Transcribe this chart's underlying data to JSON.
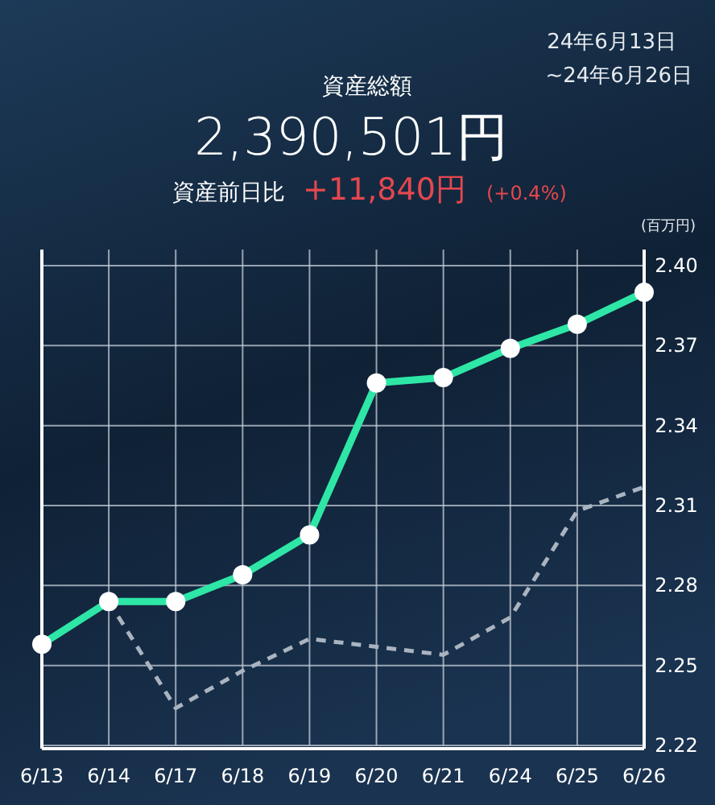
{
  "chart_data": {
    "type": "line",
    "title": "資産総額",
    "subtitle": "2,390,501円",
    "ylabel": "(百万円)",
    "annotations": [
      "24年6月13日",
      "~24年6月26日",
      "資産前日比",
      "+11,840円",
      "(+0.4%)"
    ],
    "categories": [
      "6/13",
      "6/14",
      "6/17",
      "6/18",
      "6/19",
      "6/20",
      "6/21",
      "6/24",
      "6/25",
      "6/26"
    ],
    "series": [
      {
        "color": "#2ee6a6",
        "marker": "circle",
        "line_style": "solid",
        "values": [
          2.258,
          2.274,
          2.274,
          2.284,
          2.299,
          2.356,
          2.358,
          2.369,
          2.378,
          2.39
        ]
      },
      {
        "color": "#a9b4c0",
        "marker": "none",
        "line_style": "dashed",
        "values": [
          null,
          2.274,
          2.234,
          2.248,
          2.26,
          2.257,
          2.254,
          2.268,
          2.308,
          2.317
        ]
      }
    ],
    "ylim": [
      2.22,
      2.4
    ],
    "yticks": [
      2.22,
      2.25,
      2.28,
      2.31,
      2.34,
      2.37,
      {
        "value": 2.4,
        "label": "2.40"
      }
    ],
    "grid": true
  }
}
